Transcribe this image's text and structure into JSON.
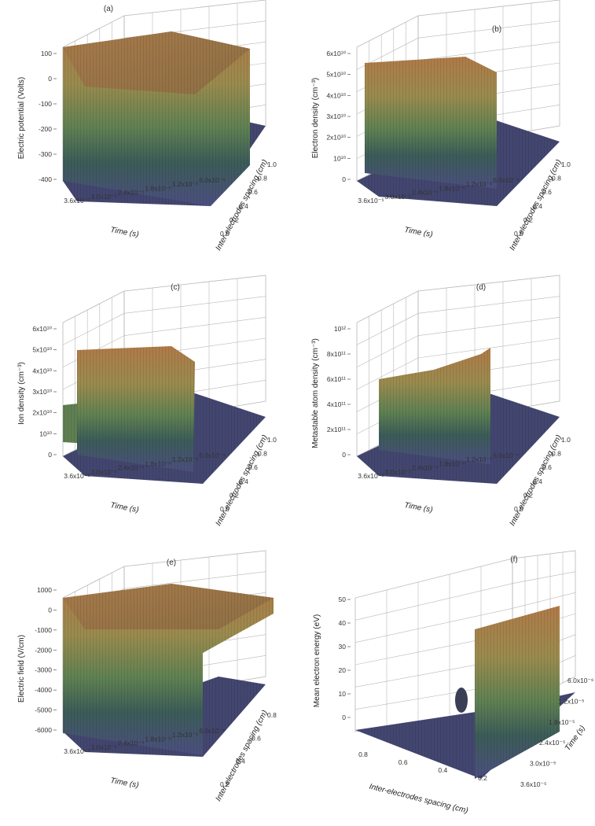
{
  "chart_data": [
    {
      "type": "surface3d",
      "label": "(a)",
      "zlabel": "Electric potential (Volts)",
      "xlabel": "Time (s)",
      "ylabel": "Inter-electrodes spacing (cm)",
      "z_ticks": [
        "100",
        "0",
        "-100",
        "-200",
        "-300",
        "-400"
      ],
      "x_ticks": [
        "3.6x10⁻⁵",
        "3.0x10⁻⁵",
        "2.4x10⁻⁵",
        "1.8x10⁻⁵",
        "1.2x10⁻⁵",
        "6.0x10⁻⁶"
      ],
      "y_ticks": [
        "0.0",
        "0.2",
        "0.4",
        "0.6",
        "0.8",
        "1.0"
      ],
      "zlim": [
        -400,
        100
      ]
    },
    {
      "type": "surface3d",
      "label": "(b)",
      "zlabel": "Electron density (cm⁻³)",
      "xlabel": "Time (s)",
      "ylabel": "Inter-electrodes spacing (cm)",
      "z_ticks": [
        "6x10¹⁰",
        "5x10¹⁰",
        "4x10¹⁰",
        "3x10¹⁰",
        "2x10¹⁰",
        "10¹⁰",
        "0"
      ],
      "x_ticks": [
        "3.6x10⁻⁵",
        "3.0x10⁻⁵",
        "2.4x10⁻⁵",
        "1.8x10⁻⁵",
        "1.2x10⁻⁵",
        "6.0x10⁻⁶"
      ],
      "y_ticks": [
        "0.0",
        "0.2",
        "0.4",
        "0.6",
        "0.8",
        "1.0"
      ],
      "zlim": [
        0,
        60000000000
      ]
    },
    {
      "type": "surface3d",
      "label": "(c)",
      "zlabel": "Ion density (cm⁻³)",
      "xlabel": "Time (s)",
      "ylabel": "Inter-electrodes spacing (cm)",
      "z_ticks": [
        "6x10¹⁰",
        "5x10¹⁰",
        "4x10¹⁰",
        "3x10¹⁰",
        "2x10¹⁰",
        "10¹⁰",
        "0"
      ],
      "x_ticks": [
        "3.6x10⁻⁵",
        "3.0x10⁻⁵",
        "2.4x10⁻⁵",
        "1.8x10⁻⁵",
        "1.2x10⁻⁵",
        "6.0x10⁻⁶"
      ],
      "y_ticks": [
        "0.0",
        "0.2",
        "0.4",
        "0.6",
        "0.8",
        "1.0"
      ],
      "zlim": [
        0,
        60000000000
      ]
    },
    {
      "type": "surface3d",
      "label": "(d)",
      "zlabel": "Metastable atom density (cm⁻³)",
      "xlabel": "Time (s)",
      "ylabel": "Inter-electrodes spacing (cm)",
      "z_ticks": [
        "10¹²",
        "8x10¹¹",
        "6x10¹¹",
        "4x10¹¹",
        "2x10¹¹",
        "0"
      ],
      "x_ticks": [
        "3.6x10⁻⁵",
        "3.0x10⁻⁵",
        "2.4x10⁻⁵",
        "1.8x10⁻⁵",
        "1.2x10⁻⁵",
        "6.0x10⁻⁶"
      ],
      "y_ticks": [
        "0.0",
        "0.2",
        "0.4",
        "0.6",
        "0.8",
        "1.0"
      ],
      "zlim": [
        0,
        1000000000000
      ]
    },
    {
      "type": "surface3d",
      "label": "(e)",
      "zlabel": "Electric field (V/cm)",
      "xlabel": "Time (s)",
      "ylabel": "Inter-electrodes spacing (cm)",
      "z_ticks": [
        "1000",
        "0",
        "-1000",
        "-2000",
        "-3000",
        "-4000",
        "-5000",
        "-6000"
      ],
      "x_ticks": [
        "3.6x10⁻⁵",
        "3.0x10⁻⁵",
        "2.4x10⁻⁵",
        "1.8x10⁻⁵",
        "1.2x10⁻⁵",
        "6.0x10⁻⁶"
      ],
      "y_ticks": [
        "0.2",
        "0.4",
        "0.6",
        "0.8"
      ],
      "zlim": [
        -6000,
        1000
      ]
    },
    {
      "type": "surface3d",
      "label": "(f)",
      "zlabel": "Mean electron energy (eV)",
      "xlabel": "Inter-electrodes spacing (cm)",
      "ylabel": "Time (s)",
      "z_ticks": [
        "50",
        "40",
        "30",
        "20",
        "10",
        "0"
      ],
      "x_ticks": [
        "0.8",
        "0.6",
        "0.4",
        "0.2"
      ],
      "y_ticks": [
        "6.0x10⁻⁶",
        "1.2x10⁻⁵",
        "1.8x10⁻⁵",
        "2.4x10⁻⁵",
        "3.0x10⁻⁵",
        "3.6x10⁻⁵"
      ],
      "zlim": [
        0,
        50
      ]
    }
  ],
  "colors": {
    "surface_top": "#b27a45",
    "surface_upper": "#9a8a4c",
    "surface_mid": "#5f7f52",
    "surface_low": "#3b5b58",
    "surface_bottom": "#4a4f7e",
    "floor": "#43466f",
    "grid": "#b8b8b8"
  }
}
